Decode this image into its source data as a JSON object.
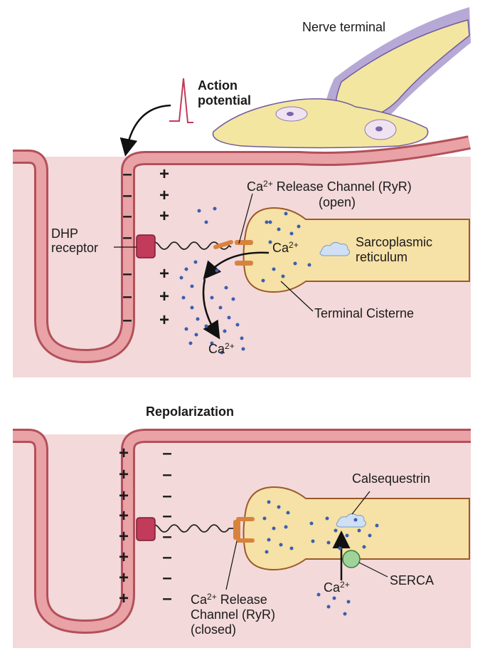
{
  "labels": {
    "nerve_terminal": "Nerve terminal",
    "action_potential_1": "Action",
    "action_potential_2": "potential",
    "dhp_1": "DHP",
    "dhp_2": "receptor",
    "release_open_base": "Ca",
    "release_open_sup": "2+",
    "release_open_rest": " Release Channel (RyR)",
    "release_open_state": "(open)",
    "ca_base": "Ca",
    "ca_sup": "2+",
    "sr_1": "Sarcoplasmic",
    "sr_2": "reticulum",
    "terminal_cisterne": "Terminal Cisterne",
    "repolarization": "Repolarization",
    "calsequestrin": "Calsequestrin",
    "serca": "SERCA",
    "release_closed_1": " Release",
    "release_closed_2": "Channel (RyR)",
    "release_closed_3": "(closed)"
  },
  "signs": {
    "plus": "+",
    "minus": "–"
  },
  "colors": {
    "cell": "#f3d9da",
    "membrane": "#e9a2a6",
    "membrane_edge": "#b3505a",
    "receptor": "#c23b5a",
    "sr_fill": "#f6e1a6",
    "sr_edge": "#9a5a2a",
    "channel": "#d7833e",
    "ion": "#3a5fb0",
    "serca": "#9fd39a",
    "calsequestrin": "#cfe0f4"
  }
}
